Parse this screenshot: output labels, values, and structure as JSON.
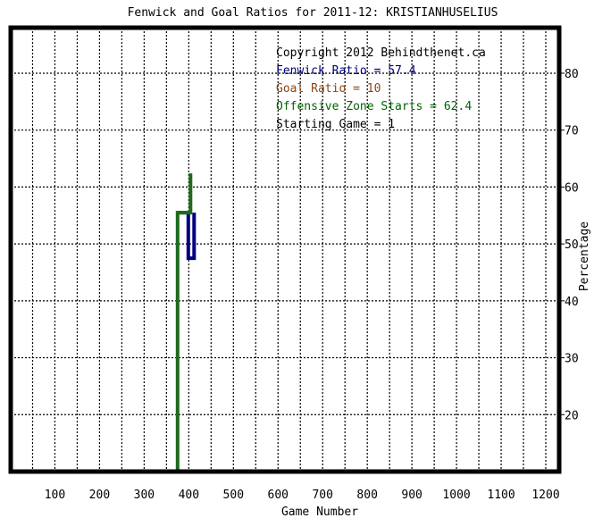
{
  "chart_data": {
    "type": "line",
    "title": "Fenwick and Goal Ratios for 2011-12: KRISTIANHUSELIUS",
    "xlabel": "Game Number",
    "ylabel": "Percentage",
    "xlim": [
      1,
      1230
    ],
    "ylim": [
      10,
      88
    ],
    "x_ticks": [
      100,
      200,
      300,
      400,
      500,
      600,
      700,
      800,
      900,
      1000,
      1100,
      1200
    ],
    "y_ticks": [
      20,
      30,
      40,
      50,
      60,
      70,
      80
    ],
    "grid": true,
    "legend": {
      "position": "top-right",
      "lines": [
        {
          "text": "Copyright 2012 Behindthenet.ca",
          "color": "#000000"
        },
        {
          "text": "Fenwick Ratio = 57.4",
          "color": "#000080"
        },
        {
          "text": "Goal Ratio = 10",
          "color": "#8b4513"
        },
        {
          "text": "Offensive Zone Starts = 62.4",
          "color": "#006400"
        },
        {
          "text": "Starting Game = 1",
          "color": "#000000"
        }
      ]
    },
    "series": [
      {
        "color": "#000080",
        "points": [
          [
            375,
            55.5
          ],
          [
            399,
            55.5
          ],
          [
            399,
            47.5
          ],
          [
            412,
            47.5
          ],
          [
            412,
            55.5
          ]
        ]
      },
      {
        "color": "#1e6b1e",
        "points": [
          [
            375,
            10
          ],
          [
            375,
            55.5
          ],
          [
            399,
            55.5
          ],
          [
            399,
            55.5
          ],
          [
            404,
            55.5
          ],
          [
            404,
            62.4
          ]
        ]
      }
    ]
  }
}
